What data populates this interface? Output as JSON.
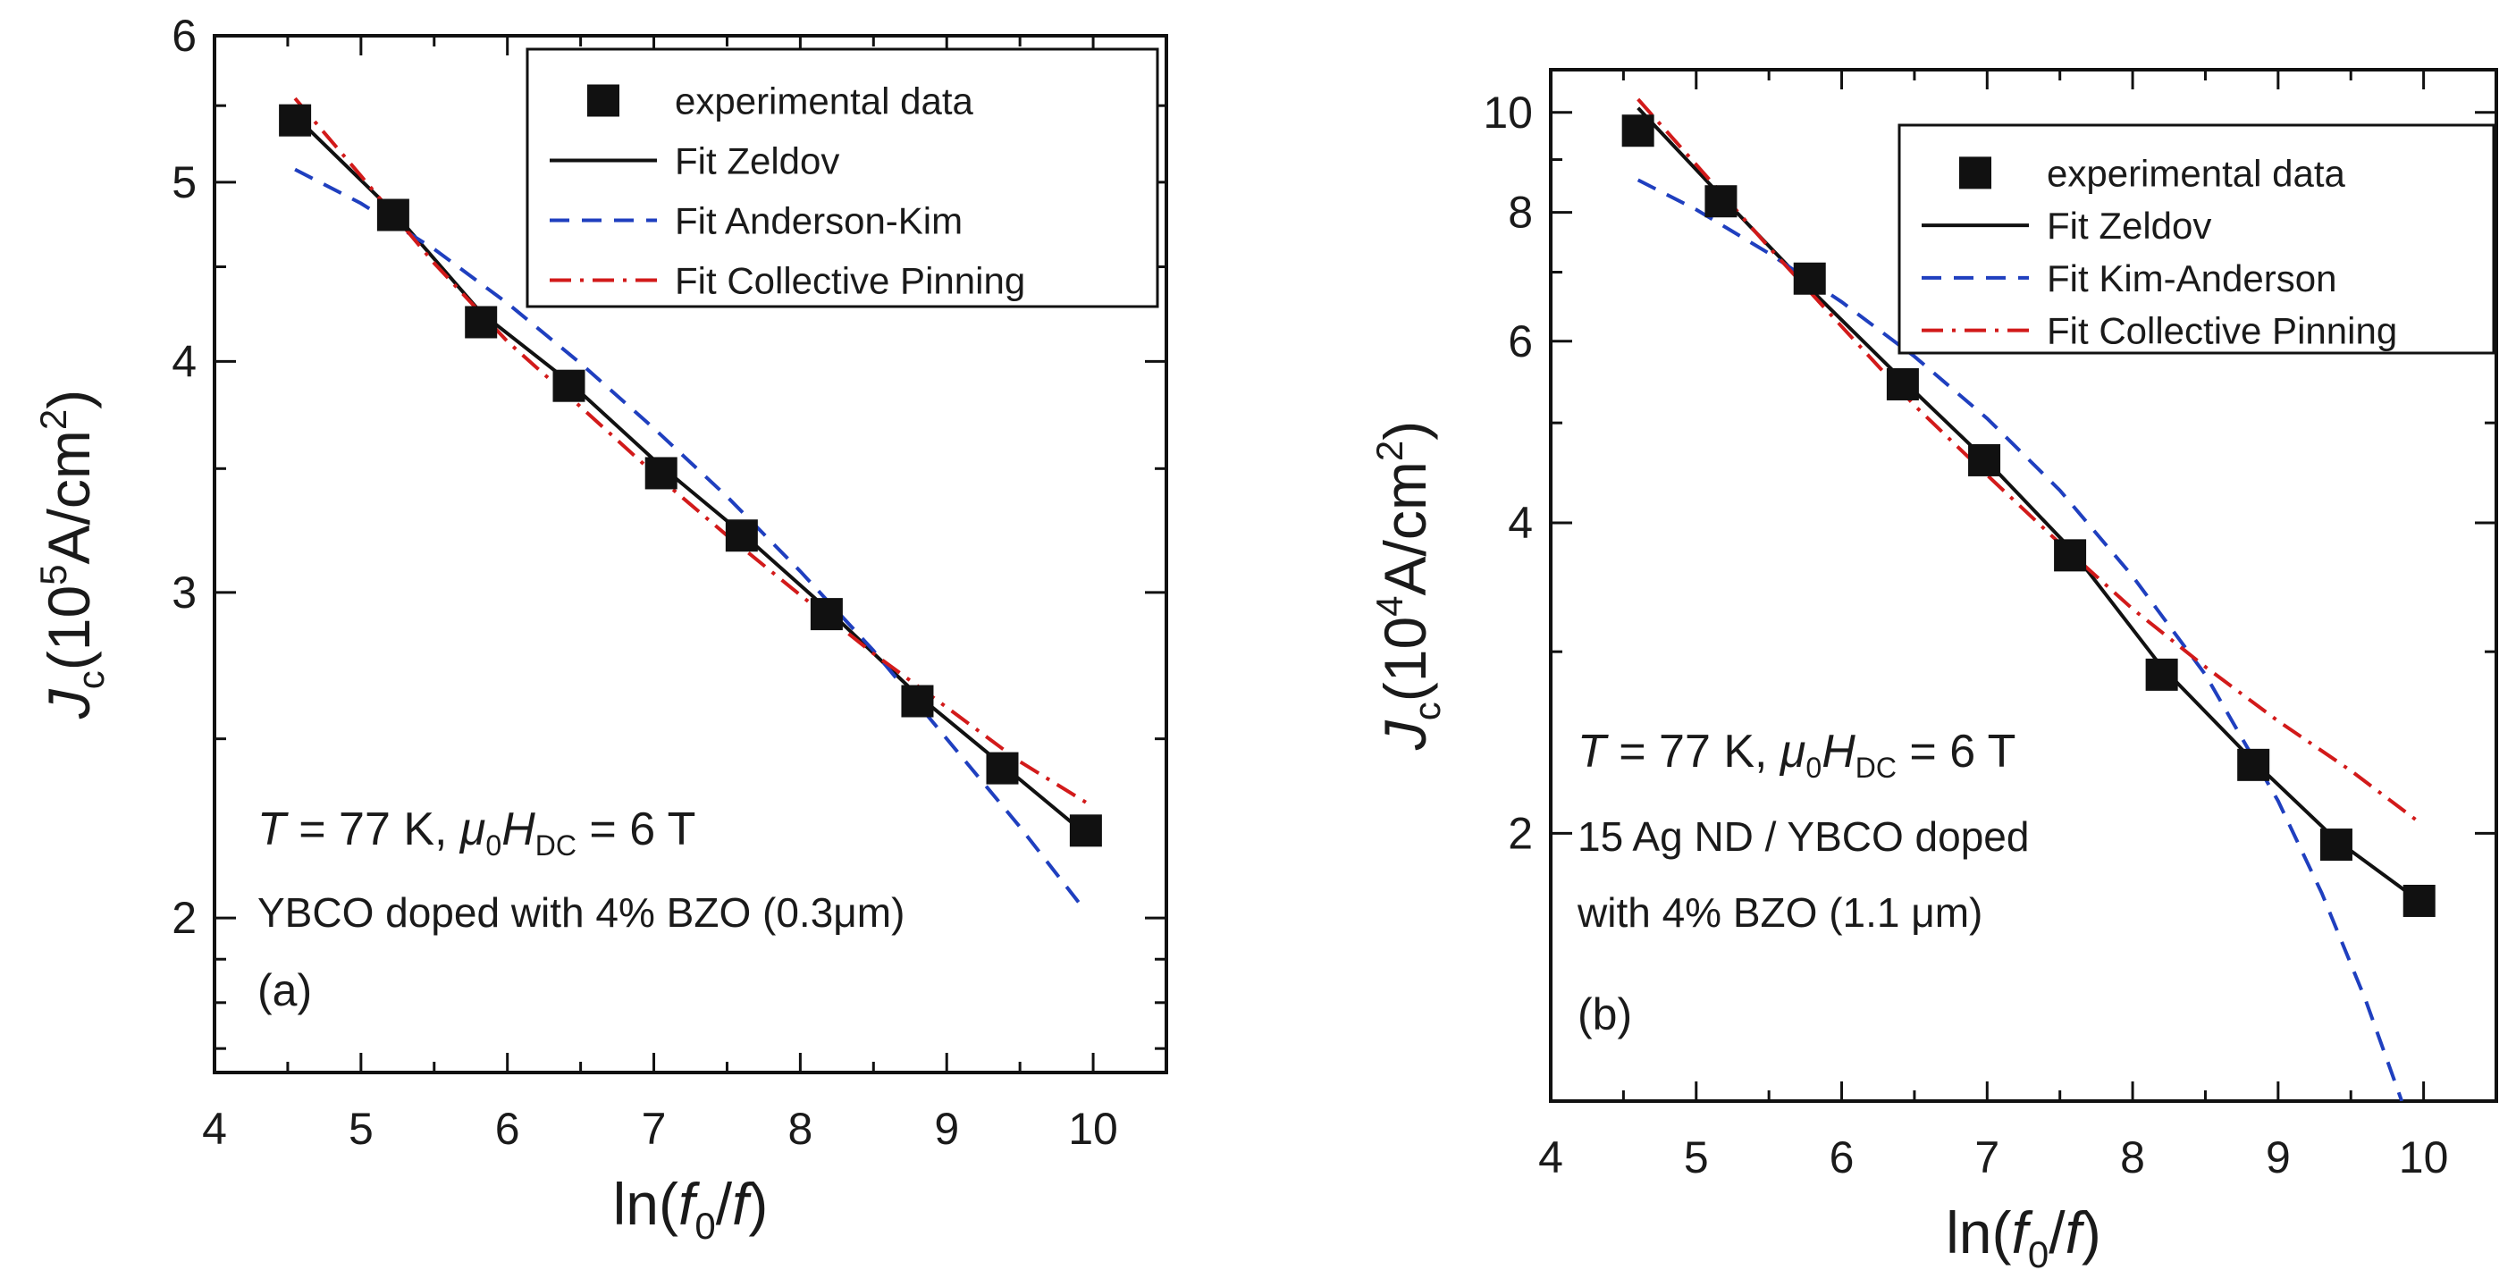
{
  "chart_data": [
    {
      "type": "scatter",
      "panel_label": "(a)",
      "xlabel": {
        "pre": "ln(",
        "italic": "f",
        "sub": "0",
        "slash": "/",
        "italic2": "f",
        "post": ")"
      },
      "ylabel": {
        "italic": "J",
        "sub": "c",
        "pre": "(10",
        "sup": "5",
        "post": "A/cm",
        "sup2": "2",
        "close": ")"
      },
      "yscale": "log",
      "xlim": [
        4,
        10.5
      ],
      "ylim": [
        1.65,
        6
      ],
      "xticks": [
        4,
        5,
        6,
        7,
        8,
        9,
        10
      ],
      "yticks": [
        2,
        3,
        4,
        5,
        6
      ],
      "annotation_line1": {
        "italic": "T",
        "t1": " = 77 K, ",
        "mu": "μ",
        "musub": "0",
        "H": "H",
        "Hsub": "DC",
        "t2": " = 6 T"
      },
      "annotation_line2": "YBCO doped with 4% BZO (0.3μm)",
      "legend": {
        "placement": "top-right",
        "entries": [
          "experimental data",
          "Fit Zeldov",
          "Fit Anderson-Kim",
          "Fit Collective Pinning"
        ]
      },
      "series": [
        {
          "name": "experimental data",
          "kind": "markers",
          "color": "#111111",
          "x": [
            4.55,
            5.22,
            5.82,
            6.42,
            7.05,
            7.6,
            8.18,
            8.8,
            9.38,
            9.95
          ],
          "y": [
            5.4,
            4.8,
            4.2,
            3.88,
            3.48,
            3.22,
            2.92,
            2.62,
            2.41,
            2.23
          ]
        },
        {
          "name": "Fit Zeldov",
          "kind": "line",
          "color": "#111111",
          "dash": "",
          "x": [
            4.55,
            5.22,
            5.82,
            6.42,
            7.05,
            7.6,
            8.18,
            8.8,
            9.38,
            9.95
          ],
          "y": [
            5.43,
            4.82,
            4.25,
            3.9,
            3.51,
            3.23,
            2.94,
            2.64,
            2.42,
            2.22
          ]
        },
        {
          "name": "Fit Anderson-Kim",
          "kind": "line",
          "color": "#1f3fbf",
          "dash": "22,14",
          "x": [
            4.55,
            5.0,
            5.5,
            6.0,
            6.5,
            7.0,
            7.5,
            8.0,
            8.5,
            9.0,
            9.5,
            9.9
          ],
          "y": [
            5.08,
            4.87,
            4.6,
            4.3,
            3.99,
            3.68,
            3.38,
            3.08,
            2.79,
            2.5,
            2.24,
            2.04
          ]
        },
        {
          "name": "Fit Collective Pinning",
          "kind": "line",
          "color": "#d21a1a",
          "dash": "24,10,4,10",
          "x": [
            4.55,
            5.0,
            5.5,
            6.0,
            6.5,
            7.0,
            7.5,
            8.0,
            8.5,
            9.0,
            9.5,
            9.95
          ],
          "y": [
            5.55,
            5.04,
            4.52,
            4.1,
            3.78,
            3.48,
            3.22,
            2.99,
            2.78,
            2.6,
            2.43,
            2.31
          ]
        }
      ]
    },
    {
      "type": "scatter",
      "panel_label": "(b)",
      "xlabel": {
        "pre": "ln(",
        "italic": "f",
        "sub": "0",
        "slash": "/",
        "italic2": "f",
        "post": ")"
      },
      "ylabel": {
        "italic": "J",
        "sub": "c",
        "pre": "(10",
        "sup": "4",
        "post": "A/cm",
        "sup2": "2",
        "close": ")"
      },
      "yscale": "log",
      "xlim": [
        4,
        10.5
      ],
      "ylim": [
        1.1,
        11
      ],
      "xticks": [
        4,
        5,
        6,
        7,
        8,
        9,
        10
      ],
      "yticks": [
        2,
        4,
        6,
        8,
        10
      ],
      "annotation_line1": {
        "italic": "T",
        "t1": " = 77 K, ",
        "mu": "μ",
        "musub": "0",
        "H": "H",
        "Hsub": "DC",
        "t2": " = 6 T"
      },
      "annotation_line2": "15 Ag ND / YBCO doped",
      "annotation_line3": "with 4% BZO (1.1 μm)",
      "legend": {
        "placement": "top-right",
        "entries": [
          "experimental data",
          "Fit Zeldov",
          "Fit Kim-Anderson",
          "Fit Collective Pinning"
        ]
      },
      "series": [
        {
          "name": "experimental data",
          "kind": "markers",
          "color": "#111111",
          "x": [
            4.6,
            5.17,
            5.78,
            6.42,
            6.98,
            7.57,
            8.2,
            8.83,
            9.4,
            9.97
          ],
          "y": [
            9.6,
            8.2,
            6.9,
            5.45,
            4.6,
            3.72,
            2.85,
            2.33,
            1.95,
            1.72
          ]
        },
        {
          "name": "Fit Zeldov",
          "kind": "line",
          "color": "#111111",
          "dash": "",
          "x": [
            4.6,
            5.17,
            5.78,
            6.42,
            6.98,
            7.57,
            8.2,
            8.83,
            9.4,
            9.97
          ],
          "y": [
            10.1,
            8.3,
            6.75,
            5.5,
            4.62,
            3.78,
            2.9,
            2.35,
            1.97,
            1.72
          ]
        },
        {
          "name": "Fit Kim-Anderson",
          "kind": "line",
          "color": "#1f3fbf",
          "dash": "22,14",
          "x": [
            4.6,
            5.0,
            5.5,
            6.0,
            6.5,
            7.0,
            7.5,
            8.0,
            8.5,
            9.0,
            9.3,
            9.6,
            9.85
          ],
          "y": [
            8.6,
            8.05,
            7.3,
            6.55,
            5.8,
            5.05,
            4.3,
            3.55,
            2.85,
            2.15,
            1.75,
            1.38,
            1.1
          ]
        },
        {
          "name": "Fit Collective Pinning",
          "kind": "line",
          "color": "#d21a1a",
          "dash": "24,10,4,10",
          "x": [
            4.6,
            5.0,
            5.5,
            6.0,
            6.5,
            7.0,
            7.5,
            8.0,
            8.5,
            9.0,
            9.5,
            9.97
          ],
          "y": [
            10.3,
            8.9,
            7.4,
            6.2,
            5.2,
            4.45,
            3.82,
            3.3,
            2.9,
            2.57,
            2.3,
            2.05
          ]
        }
      ]
    }
  ]
}
